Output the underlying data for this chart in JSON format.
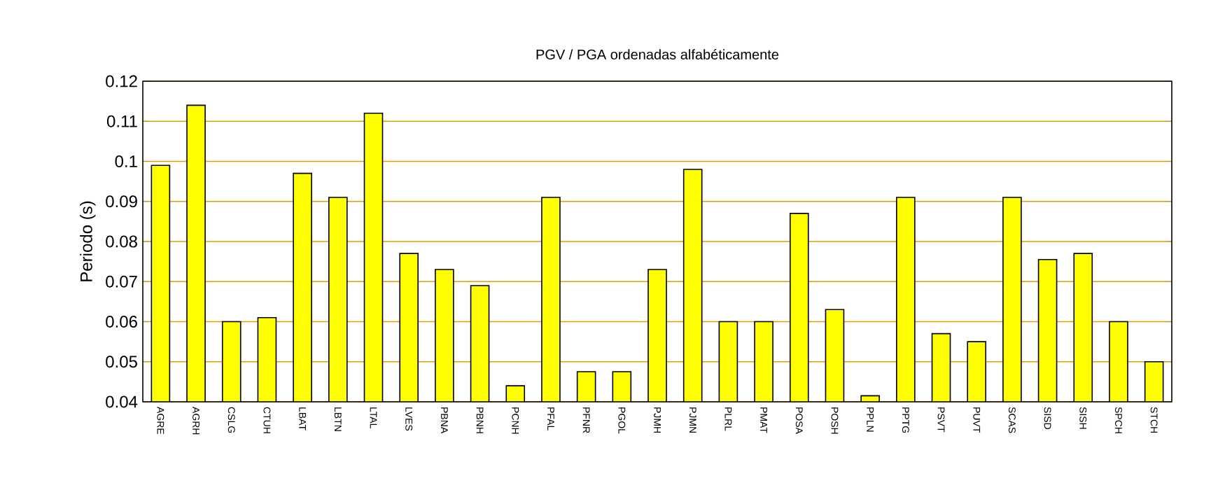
{
  "chart_data": {
    "type": "bar",
    "title": "PGV / PGA ordenadas alfabéticamente",
    "ylabel": "Periodo (s)",
    "categories": [
      "AGRE",
      "AGRH",
      "CSLG",
      "CTUH",
      "LBAT",
      "LBTN",
      "LTAL",
      "LVES",
      "PBNA",
      "PBNH",
      "PCNH",
      "PFAL",
      "PFNR",
      "PGOL",
      "PJMH",
      "PJMN",
      "PLRL",
      "PMAT",
      "POSA",
      "POSH",
      "PPLN",
      "PPTG",
      "PSVT",
      "PUVT",
      "SCAS",
      "SISD",
      "SISH",
      "SPCH",
      "STCH"
    ],
    "values": [
      0.099,
      0.114,
      0.06,
      0.061,
      0.097,
      0.091,
      0.112,
      0.077,
      0.073,
      0.069,
      0.044,
      0.091,
      0.0475,
      0.0475,
      0.073,
      0.098,
      0.06,
      0.06,
      0.087,
      0.063,
      0.0415,
      0.091,
      0.057,
      0.055,
      0.091,
      0.0755,
      0.077,
      0.06,
      0.05
    ],
    "color": "#ffff00",
    "ylim": [
      0.04,
      0.12
    ],
    "yticks": [
      0.04,
      0.05,
      0.06,
      0.07,
      0.08,
      0.09,
      0.1,
      0.11,
      0.12
    ],
    "grid": "y"
  }
}
